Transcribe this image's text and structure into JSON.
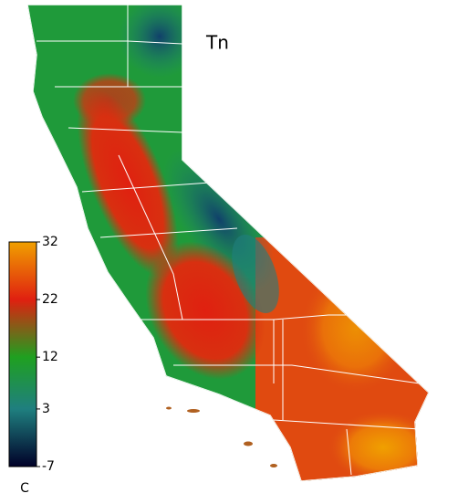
{
  "title": "Tn",
  "colorbar": {
    "lim": [
      -7,
      32
    ],
    "ticks": [
      32,
      22,
      12,
      3,
      -7
    ],
    "colors": [
      "#f0a000",
      "#e02010",
      "#1fa020",
      "#1f7f7f",
      "#000028"
    ],
    "unit": "C"
  }
}
